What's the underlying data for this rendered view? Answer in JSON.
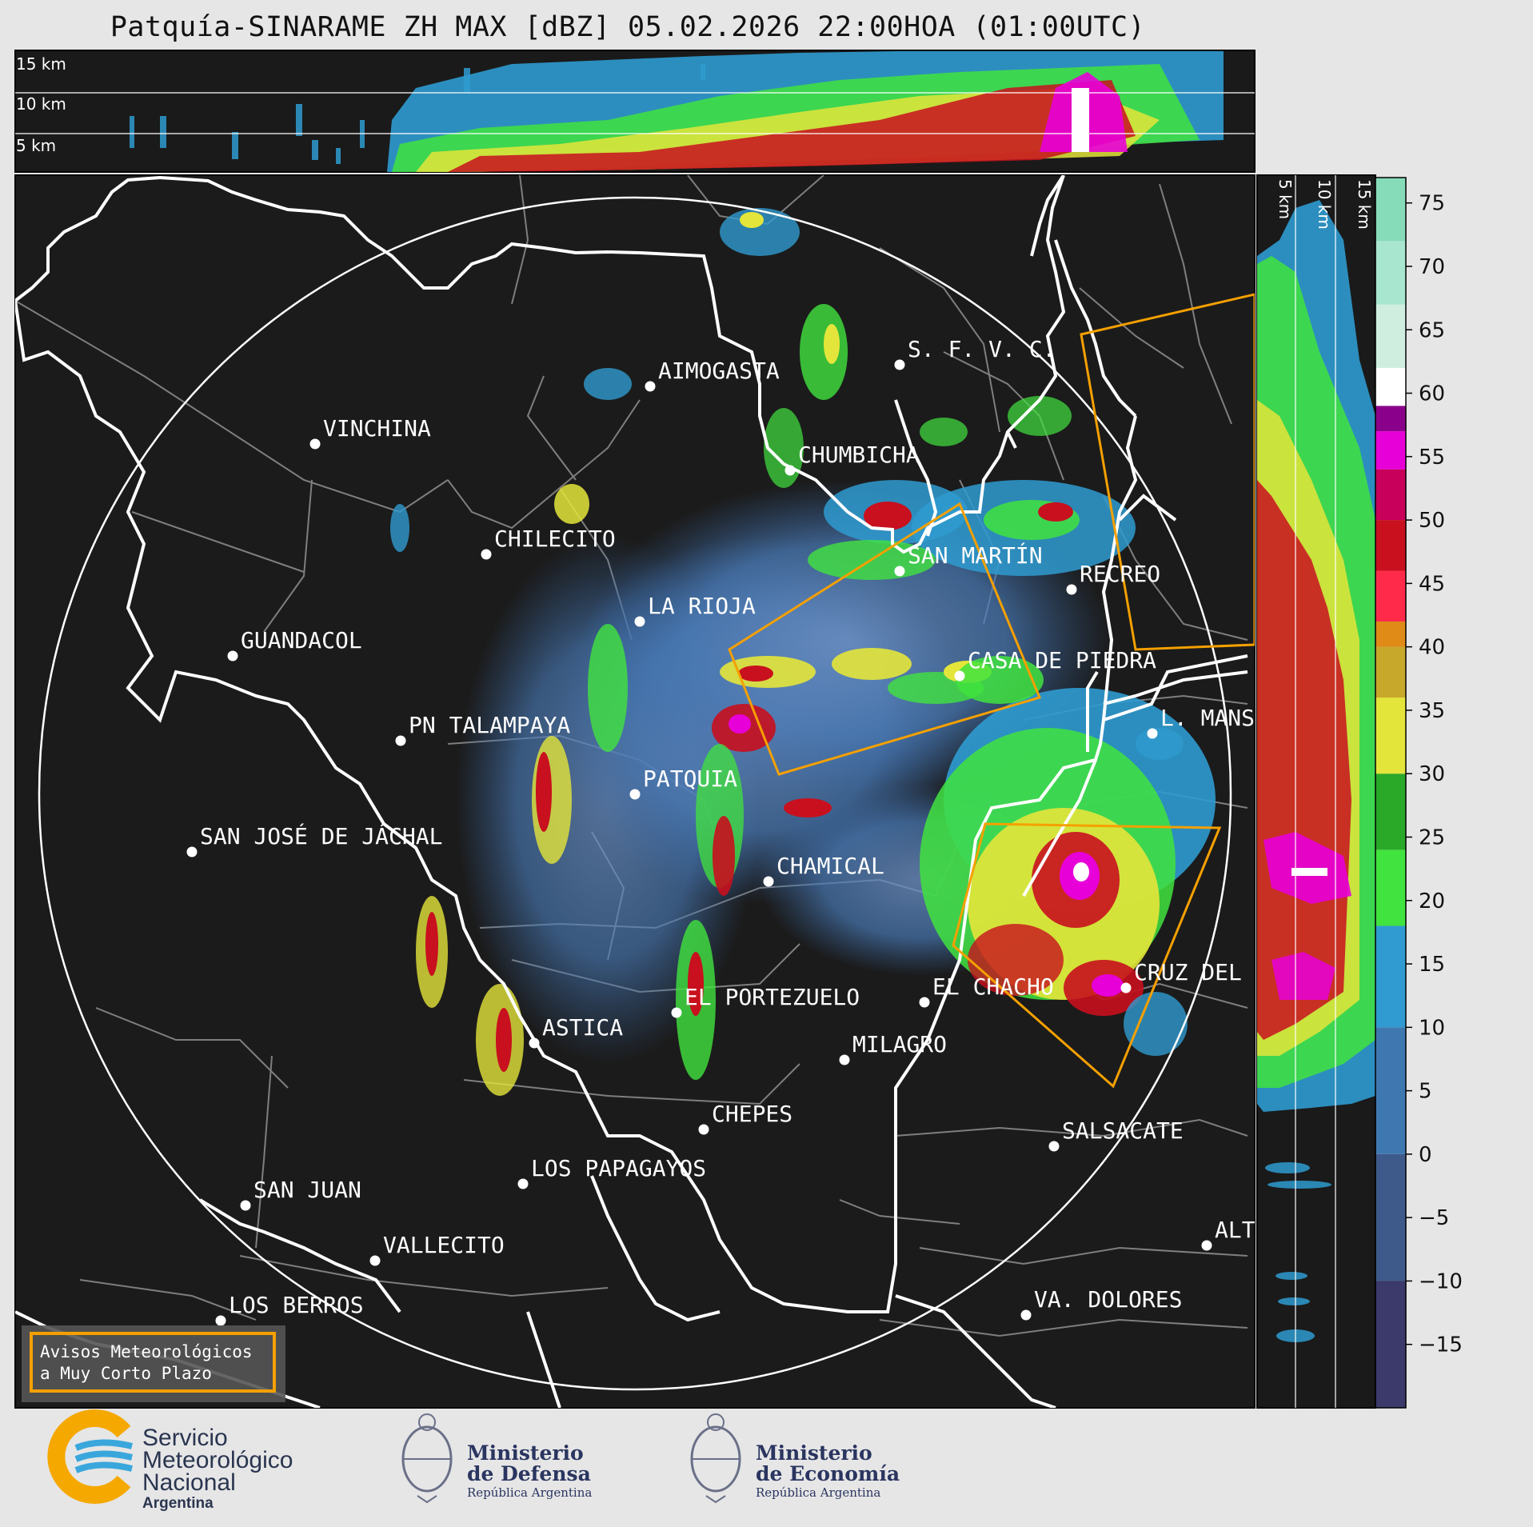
{
  "title": "Patquía-SINARAME ZH MAX [dBZ] 05.02.2026 22:00HOA (01:00UTC)",
  "top_panel": {
    "height_labels": [
      "15 km",
      "10 km",
      "5 km"
    ]
  },
  "side_panel": {
    "height_labels": [
      "5 km",
      "10 km",
      "15 km"
    ]
  },
  "colorbar": {
    "ticks": [
      "75",
      "70",
      "65",
      "60",
      "55",
      "50",
      "45",
      "40",
      "35",
      "30",
      "25",
      "20",
      "15",
      "10",
      "5",
      "0",
      "−5",
      "−10",
      "−15"
    ],
    "tick_values": [
      75,
      70,
      65,
      60,
      55,
      50,
      45,
      40,
      35,
      30,
      25,
      20,
      15,
      10,
      5,
      0,
      -5,
      -10,
      -15
    ],
    "range": [
      -20,
      77
    ],
    "stops": [
      {
        "from": -20,
        "color": "#3b3a6a"
      },
      {
        "from": -10,
        "color": "#3e5a8a"
      },
      {
        "from": 0,
        "color": "#3f78b0"
      },
      {
        "from": 10,
        "color": "#2f9bd0"
      },
      {
        "from": 18,
        "color": "#41e33e"
      },
      {
        "from": 24,
        "color": "#2aa828"
      },
      {
        "from": 30,
        "color": "#e4e53a"
      },
      {
        "from": 36,
        "color": "#c8a82a"
      },
      {
        "from": 40,
        "color": "#e08a18"
      },
      {
        "from": 42,
        "color": "#ff2a4a"
      },
      {
        "from": 46,
        "color": "#c8101e"
      },
      {
        "from": 50,
        "color": "#c8005c"
      },
      {
        "from": 54,
        "color": "#e800d8"
      },
      {
        "from": 57,
        "color": "#8a008a"
      },
      {
        "from": 59,
        "color": "#ffffff"
      },
      {
        "from": 62,
        "color": "#cfeee0"
      },
      {
        "from": 67,
        "color": "#a8e6cf"
      },
      {
        "from": 72,
        "color": "#86dcb8"
      }
    ]
  },
  "places": [
    {
      "name": "AIMOGASTA"
    },
    {
      "name": "S. F. V. C."
    },
    {
      "name": "VINCHINA"
    },
    {
      "name": "CHUMBICHA"
    },
    {
      "name": "CHILECITO"
    },
    {
      "name": "SAN MARTÍN"
    },
    {
      "name": "RECREO"
    },
    {
      "name": "LA RIOJA"
    },
    {
      "name": "GUANDACOL"
    },
    {
      "name": "CASA DE PIEDRA"
    },
    {
      "name": "PN TALAMPAYA"
    },
    {
      "name": "L. MANS"
    },
    {
      "name": "PATQUIA"
    },
    {
      "name": "SAN JOSÉ DE JÁCHAL"
    },
    {
      "name": "CHAMICAL"
    },
    {
      "name": "CRUZ DEL"
    },
    {
      "name": "EL CHACHO"
    },
    {
      "name": "EL PORTEZUELO"
    },
    {
      "name": "ASTICA"
    },
    {
      "name": "MILAGRO"
    },
    {
      "name": "CHEPES"
    },
    {
      "name": "SALSACATE"
    },
    {
      "name": "LOS PAPAGAYOS"
    },
    {
      "name": "SAN JUAN"
    },
    {
      "name": "VALLECITO"
    },
    {
      "name": "ALT"
    },
    {
      "name": "LOS BERROS"
    },
    {
      "name": "VA. DOLORES"
    }
  ],
  "warning_box": {
    "line1": "Avisos Meteorológicos",
    "line2": "a Muy Corto Plazo",
    "outline_color": "#f5a000"
  },
  "logos": {
    "smn": {
      "line1": "Servicio",
      "line2": "Meteorológico",
      "line3": "Nacional",
      "line4": "Argentina"
    },
    "defensa": {
      "line1": "Ministerio",
      "line2": "de Defensa",
      "line3": "República Argentina"
    },
    "economia": {
      "line1": "Ministerio",
      "line2": "de Economía",
      "line3": "República Argentina"
    }
  }
}
